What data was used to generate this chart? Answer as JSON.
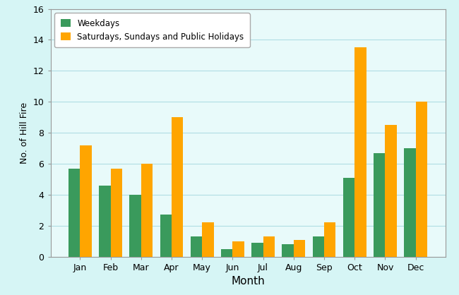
{
  "months": [
    "Jan",
    "Feb",
    "Mar",
    "Apr",
    "May",
    "Jun",
    "Jul",
    "Aug",
    "Sep",
    "Oct",
    "Nov",
    "Dec"
  ],
  "weekdays": [
    5.7,
    4.6,
    4.0,
    2.7,
    1.3,
    0.5,
    0.9,
    0.8,
    1.3,
    5.1,
    6.7,
    7.0
  ],
  "holidays": [
    7.2,
    5.7,
    6.0,
    9.0,
    2.2,
    1.0,
    1.3,
    1.1,
    2.2,
    13.5,
    8.5,
    10.0
  ],
  "weekday_color": "#3A9A5C",
  "holiday_color": "#FFA500",
  "fig_bg_color": "#D6F5F5",
  "plot_bg_color": "#E8FAFA",
  "ylabel": "No. of Hill Fire",
  "xlabel": "Month",
  "ylim": [
    0,
    16
  ],
  "yticks": [
    0,
    2,
    4,
    6,
    8,
    10,
    12,
    14,
    16
  ],
  "legend_weekdays": "Weekdays",
  "legend_holidays": "Saturdays, Sundays and Public Holidays",
  "bar_width": 0.38,
  "grid_color": "#B0DDE4",
  "spine_color": "#999999"
}
